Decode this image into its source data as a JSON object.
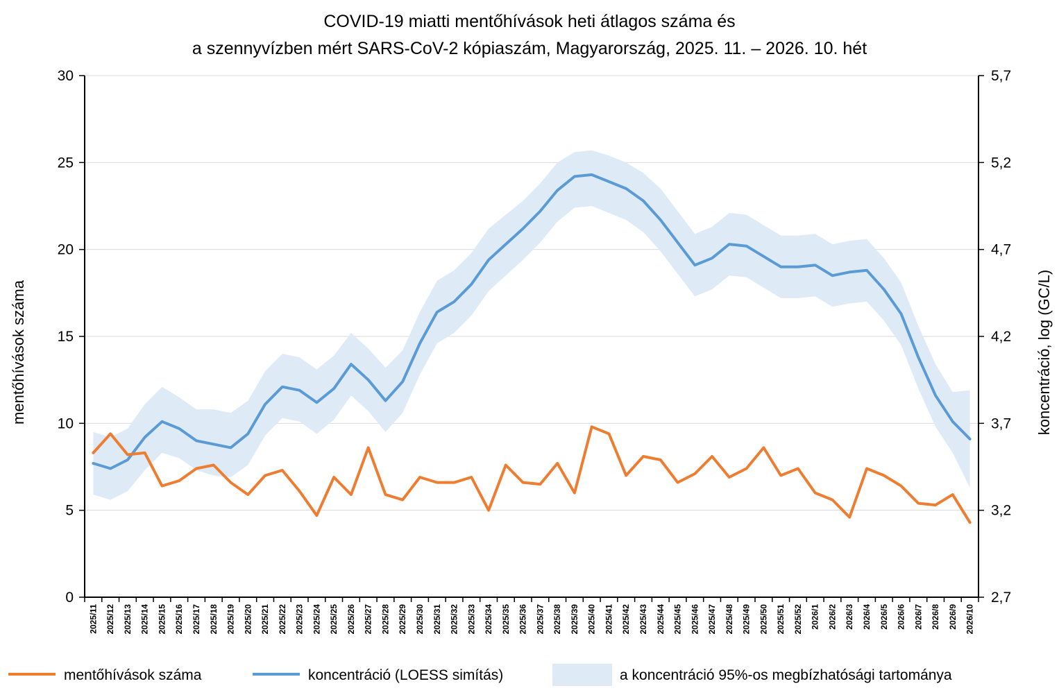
{
  "chart_data": {
    "type": "line",
    "title_lines": [
      "COVID-19 miatti mentőhívások heti átlagos száma és",
      "a szennyvízben mért SARS-CoV-2 kópiaszám, Magyarország, 2025. 11. – 2026. 10. hét"
    ],
    "ylabel_left": "mentőhívások száma",
    "ylabel_right": "koncentráció, log (GC/L)",
    "ylim_left": [
      0,
      30
    ],
    "ylim_right": [
      2.7,
      5.7
    ],
    "yticks_left": [
      "0",
      "5",
      "10",
      "15",
      "20",
      "25",
      "30"
    ],
    "yticks_right": [
      "2,7",
      "3,2",
      "3,7",
      "4,2",
      "4,7",
      "5,2",
      "5,7"
    ],
    "grid": true,
    "legend_position": "bottom",
    "categories": [
      "2025/11",
      "2025/12",
      "2025/13",
      "2025/14",
      "2025/15",
      "2025/16",
      "2025/17",
      "2025/18",
      "2025/19",
      "2025/20",
      "2025/21",
      "2025/22",
      "2025/23",
      "2025/24",
      "2025/25",
      "2025/26",
      "2025/27",
      "2025/28",
      "2025/29",
      "2025/30",
      "2025/31",
      "2025/32",
      "2025/33",
      "2025/34",
      "2025/35",
      "2025/36",
      "2025/37",
      "2025/38",
      "2025/39",
      "2025/40",
      "2025/41",
      "2025/42",
      "2025/43",
      "2025/44",
      "2025/45",
      "2025/46",
      "2025/47",
      "2025/48",
      "2025/49",
      "2025/50",
      "2025/51",
      "2025/52",
      "2026/1",
      "2026/2",
      "2026/3",
      "2026/4",
      "2026/5",
      "2026/6",
      "2026/7",
      "2026/8",
      "2026/9",
      "2026/10"
    ],
    "series": [
      {
        "name": "mentőhívások száma",
        "axis": "left",
        "color": "#ED7D31",
        "values": [
          8.3,
          9.4,
          8.2,
          8.3,
          6.4,
          6.7,
          7.4,
          7.6,
          6.6,
          5.9,
          7.0,
          7.3,
          6.1,
          4.7,
          6.9,
          5.9,
          8.6,
          5.9,
          5.6,
          6.9,
          6.6,
          6.6,
          6.9,
          5.0,
          7.6,
          6.6,
          6.5,
          7.7,
          6.0,
          9.8,
          9.4,
          7.0,
          8.1,
          7.9,
          6.6,
          7.1,
          8.1,
          6.9,
          7.4,
          8.6,
          7.0,
          7.4,
          6.0,
          5.6,
          4.6,
          7.4,
          7.0,
          6.4,
          5.4,
          5.3,
          5.9,
          4.3
        ]
      },
      {
        "name": "koncentráció (LOESS simítás)",
        "axis": "right",
        "color": "#5B9BD5",
        "values": [
          3.47,
          3.44,
          3.49,
          3.62,
          3.71,
          3.67,
          3.6,
          3.58,
          3.56,
          3.64,
          3.81,
          3.91,
          3.89,
          3.82,
          3.9,
          4.04,
          3.95,
          3.83,
          3.94,
          4.16,
          4.34,
          4.4,
          4.5,
          4.64,
          4.73,
          4.82,
          4.92,
          5.04,
          5.12,
          5.13,
          5.09,
          5.05,
          4.98,
          4.87,
          4.74,
          4.61,
          4.65,
          4.73,
          4.72,
          4.66,
          4.6,
          4.6,
          4.61,
          4.55,
          4.57,
          4.58,
          4.47,
          4.33,
          4.08,
          3.86,
          3.71,
          3.61
        ]
      },
      {
        "name": "a koncentráció 95%-os megbízhatósági tartománya",
        "axis": "right",
        "color": "#DEEBF7",
        "lower": [
          3.29,
          3.26,
          3.31,
          3.43,
          3.53,
          3.5,
          3.43,
          3.4,
          3.39,
          3.46,
          3.63,
          3.73,
          3.71,
          3.64,
          3.72,
          3.86,
          3.77,
          3.65,
          3.76,
          3.98,
          4.16,
          4.22,
          4.32,
          4.46,
          4.55,
          4.64,
          4.74,
          4.86,
          4.94,
          4.95,
          4.91,
          4.87,
          4.8,
          4.69,
          4.56,
          4.43,
          4.47,
          4.55,
          4.54,
          4.48,
          4.42,
          4.42,
          4.43,
          4.37,
          4.39,
          4.4,
          4.29,
          4.15,
          3.9,
          3.68,
          3.53,
          3.33
        ],
        "upper": [
          3.65,
          3.62,
          3.67,
          3.81,
          3.91,
          3.85,
          3.78,
          3.78,
          3.76,
          3.83,
          4.0,
          4.1,
          4.08,
          4.01,
          4.09,
          4.22,
          4.13,
          4.02,
          4.12,
          4.34,
          4.52,
          4.58,
          4.68,
          4.82,
          4.9,
          4.98,
          5.08,
          5.2,
          5.26,
          5.27,
          5.24,
          5.2,
          5.14,
          5.05,
          4.92,
          4.79,
          4.83,
          4.91,
          4.9,
          4.84,
          4.78,
          4.78,
          4.79,
          4.73,
          4.75,
          4.76,
          4.65,
          4.51,
          4.26,
          4.04,
          3.88,
          3.89
        ]
      }
    ]
  }
}
